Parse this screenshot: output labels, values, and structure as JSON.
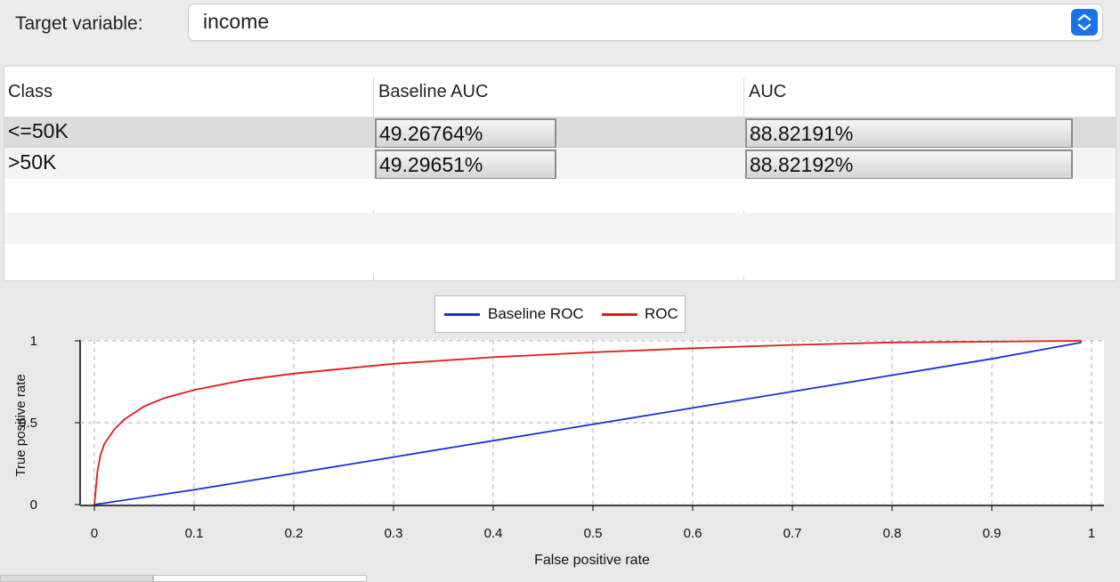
{
  "target": {
    "label": "Target variable:",
    "value": "income"
  },
  "table": {
    "headers": [
      "Class",
      "Baseline AUC",
      "AUC"
    ],
    "rows": [
      {
        "class": "<=50K",
        "baseline_auc": "49.26764%",
        "auc": "88.82191%",
        "baseline_fraction": 0.4926764,
        "auc_fraction": 0.8882191
      },
      {
        "class": ">50K",
        "baseline_auc": "49.29651%",
        "auc": "88.82192%",
        "baseline_fraction": 0.4929651,
        "auc_fraction": 0.8882192
      }
    ]
  },
  "chart_data": {
    "type": "line",
    "title": "",
    "xlabel": "False positive rate",
    "ylabel": "True positive rate",
    "xlim": [
      0,
      1
    ],
    "ylim": [
      0,
      1
    ],
    "xticks": [
      "0",
      "0.1",
      "0.2",
      "0.3",
      "0.4",
      "0.5",
      "0.6",
      "0.7",
      "0.8",
      "0.9",
      "1"
    ],
    "yticks": [
      "0",
      "0.5",
      "1"
    ],
    "grid": true,
    "legend": "top-center",
    "series": [
      {
        "name": "Baseline ROC",
        "color": "#1a2fe0",
        "x": [
          0,
          0.1,
          0.2,
          0.3,
          0.4,
          0.5,
          0.6,
          0.7,
          0.8,
          0.9,
          0.99
        ],
        "y": [
          0,
          0.09,
          0.19,
          0.29,
          0.39,
          0.49,
          0.59,
          0.69,
          0.79,
          0.89,
          0.99
        ]
      },
      {
        "name": "ROC",
        "color": "#e01a1a",
        "x": [
          0,
          0.003,
          0.006,
          0.01,
          0.02,
          0.03,
          0.05,
          0.07,
          0.1,
          0.15,
          0.2,
          0.3,
          0.4,
          0.5,
          0.6,
          0.7,
          0.8,
          0.9,
          0.99
        ],
        "y": [
          0,
          0.2,
          0.3,
          0.37,
          0.46,
          0.52,
          0.6,
          0.65,
          0.7,
          0.76,
          0.8,
          0.86,
          0.9,
          0.93,
          0.955,
          0.975,
          0.99,
          0.995,
          1
        ]
      }
    ]
  }
}
